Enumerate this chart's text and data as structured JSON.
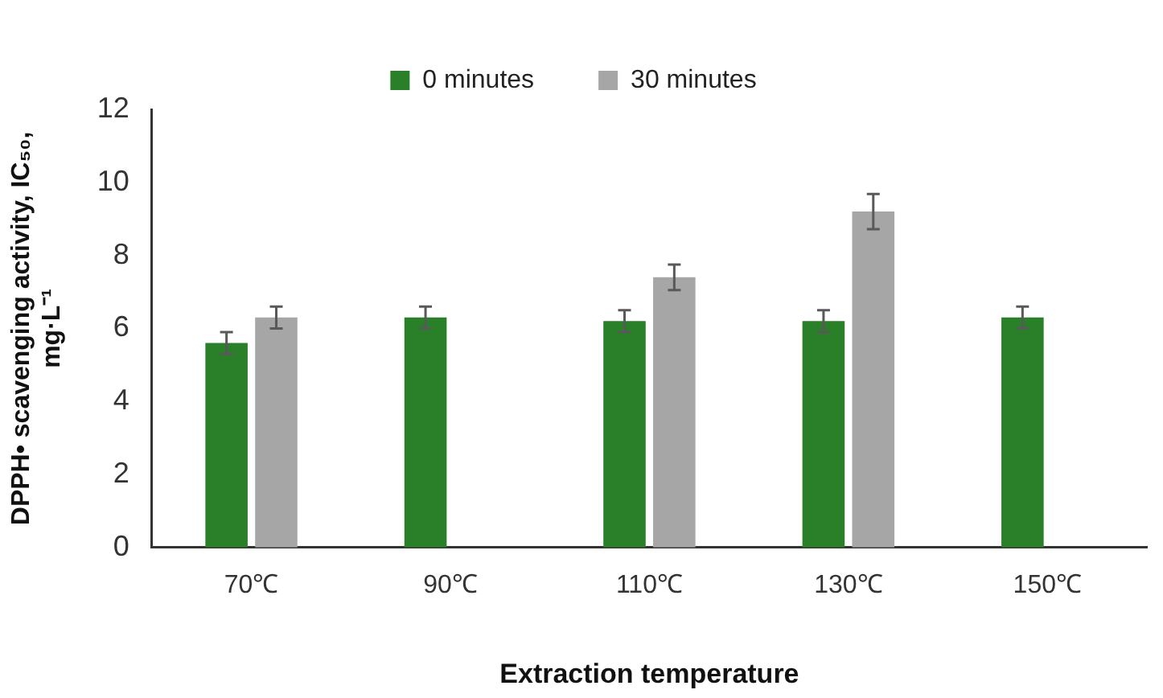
{
  "chart_data": {
    "type": "bar",
    "xlabel": "Extraction temperature",
    "ylabel": "DPPH• scavenging activity, IC₅₀, mg·L⁻¹",
    "categories": [
      "70℃",
      "90℃",
      "110℃",
      "130℃",
      "150℃"
    ],
    "series": [
      {
        "name": "0 minutes",
        "color": "#2a8028",
        "values": [
          5.6,
          6.3,
          6.2,
          6.2,
          6.3
        ],
        "errors": [
          0.3,
          0.3,
          0.3,
          0.3,
          0.3
        ]
      },
      {
        "name": "30 minutes",
        "color": "#a6a6a6",
        "values": [
          6.3,
          null,
          7.4,
          9.2,
          null
        ],
        "errors": [
          0.3,
          null,
          0.35,
          0.48,
          null
        ]
      }
    ],
    "ylim": [
      0,
      12
    ],
    "yticks": [
      0,
      2,
      4,
      6,
      8,
      10,
      12
    ],
    "grid": false,
    "legend": "top"
  }
}
